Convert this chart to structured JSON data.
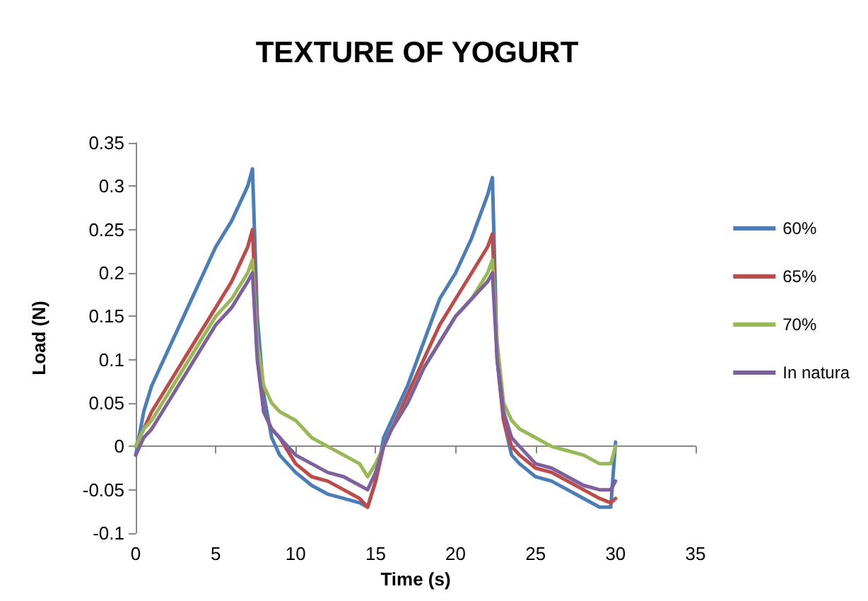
{
  "chart_data": {
    "type": "line",
    "title": "TEXTURE OF YOGURT",
    "xlabel": "Time (s)",
    "ylabel": "Load (N)",
    "x": [
      0,
      0.5,
      1,
      2,
      3,
      4,
      5,
      6,
      7,
      7.3,
      7.6,
      8,
      8.5,
      9,
      10,
      11,
      12,
      13,
      14,
      14.5,
      15,
      15.5,
      16,
      17,
      18,
      19,
      20,
      21,
      22,
      22.3,
      22.6,
      23,
      23.5,
      24,
      25,
      26,
      27,
      28,
      29,
      29.7,
      30
    ],
    "series": [
      {
        "name": "60%",
        "color": "#4a7ebb",
        "values": [
          -0.01,
          0.04,
          0.07,
          0.11,
          0.15,
          0.19,
          0.23,
          0.26,
          0.3,
          0.32,
          0.15,
          0.06,
          0.01,
          -0.01,
          -0.03,
          -0.045,
          -0.055,
          -0.06,
          -0.065,
          -0.07,
          -0.04,
          0.01,
          0.03,
          0.07,
          0.12,
          0.17,
          0.2,
          0.24,
          0.29,
          0.31,
          0.1,
          0.03,
          -0.01,
          -0.02,
          -0.035,
          -0.04,
          -0.05,
          -0.06,
          -0.07,
          -0.07,
          0.005
        ]
      },
      {
        "name": "65%",
        "color": "#be4b48",
        "values": [
          0,
          0.02,
          0.04,
          0.07,
          0.1,
          0.13,
          0.16,
          0.19,
          0.23,
          0.25,
          0.12,
          0.04,
          0.02,
          0.01,
          -0.02,
          -0.035,
          -0.04,
          -0.05,
          -0.06,
          -0.07,
          -0.04,
          0,
          0.02,
          0.06,
          0.1,
          0.14,
          0.17,
          0.2,
          0.23,
          0.245,
          0.1,
          0.03,
          0,
          -0.01,
          -0.025,
          -0.03,
          -0.04,
          -0.05,
          -0.06,
          -0.065,
          -0.06
        ]
      },
      {
        "name": "70%",
        "color": "#98b954",
        "values": [
          0,
          0.02,
          0.03,
          0.06,
          0.09,
          0.12,
          0.15,
          0.17,
          0.2,
          0.215,
          0.12,
          0.07,
          0.05,
          0.04,
          0.03,
          0.01,
          0,
          -0.01,
          -0.02,
          -0.035,
          -0.02,
          0,
          0.02,
          0.05,
          0.09,
          0.12,
          0.15,
          0.17,
          0.2,
          0.215,
          0.12,
          0.05,
          0.03,
          0.02,
          0.01,
          0,
          -0.005,
          -0.01,
          -0.02,
          -0.02,
          0
        ]
      },
      {
        "name": "In natura",
        "color": "#7d60a0",
        "values": [
          -0.01,
          0.01,
          0.02,
          0.05,
          0.08,
          0.11,
          0.14,
          0.16,
          0.19,
          0.2,
          0.1,
          0.04,
          0.02,
          0.01,
          -0.01,
          -0.02,
          -0.03,
          -0.035,
          -0.045,
          -0.05,
          -0.03,
          0,
          0.02,
          0.05,
          0.09,
          0.12,
          0.15,
          0.17,
          0.19,
          0.2,
          0.1,
          0.04,
          0.01,
          0,
          -0.02,
          -0.025,
          -0.035,
          -0.045,
          -0.05,
          -0.05,
          -0.04
        ]
      }
    ],
    "xlim": [
      0,
      35
    ],
    "xticks": [
      0,
      5,
      10,
      15,
      20,
      25,
      30,
      35
    ],
    "ylim": [
      -0.1,
      0.35
    ],
    "yticks": [
      -0.1,
      -0.05,
      0,
      0.05,
      0.1,
      0.15,
      0.2,
      0.25,
      0.3,
      0.35
    ],
    "legend": "right",
    "marker": "none",
    "line_style": "solid"
  }
}
